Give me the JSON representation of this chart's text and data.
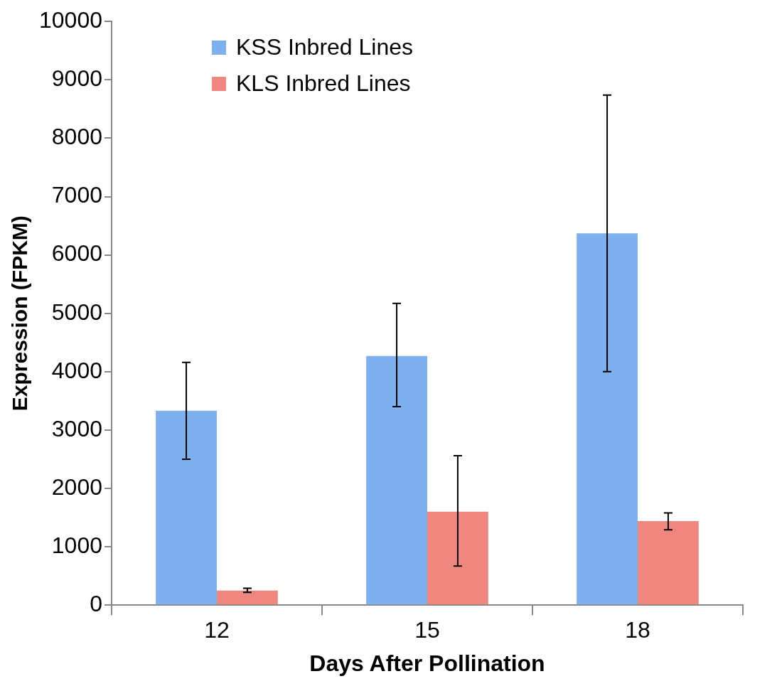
{
  "chart_data": {
    "type": "bar",
    "xlabel": "Days After Pollination",
    "ylabel": "Expression (FPKM)",
    "categories": [
      "12",
      "15",
      "18"
    ],
    "series": [
      {
        "name": "KSS Inbred Lines",
        "color": "#7db0ec",
        "values": [
          3330,
          4270,
          6370
        ],
        "errors": [
          [
            2500,
            4160
          ],
          [
            3400,
            5170
          ],
          [
            4000,
            8740
          ]
        ]
      },
      {
        "name": "KLS Inbred Lines",
        "color": "#f0877e",
        "values": [
          250,
          1600,
          1440
        ],
        "errors": [
          [
            220,
            290
          ],
          [
            670,
            2560
          ],
          [
            1290,
            1580
          ]
        ]
      }
    ],
    "ylim": [
      0,
      10000
    ],
    "yticks": [
      0,
      1000,
      2000,
      3000,
      4000,
      5000,
      6000,
      7000,
      8000,
      9000,
      10000
    ],
    "grid": false,
    "legend": "top left"
  }
}
